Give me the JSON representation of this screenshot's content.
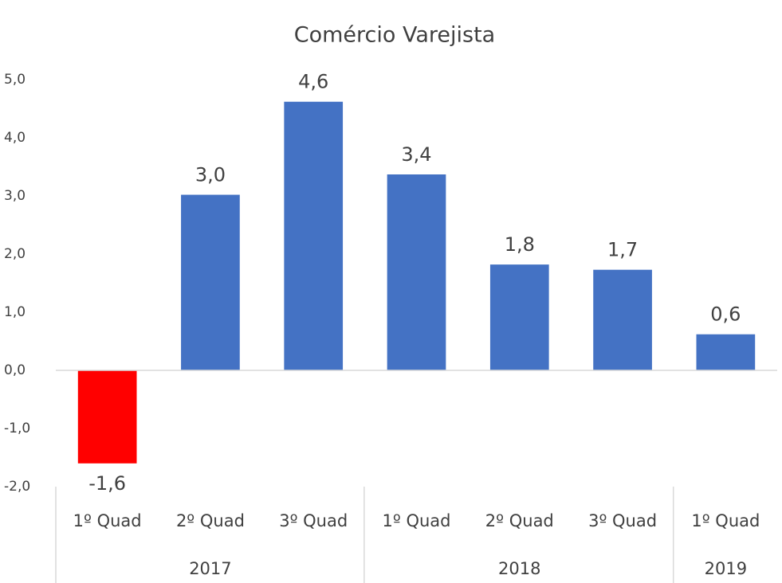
{
  "chart_data": {
    "type": "bar",
    "title": "Comércio Varejista",
    "categories": [
      "1º Quad",
      "2º Quad",
      "3º Quad",
      "1º Quad",
      "2º Quad",
      "3º Quad",
      "1º Quad"
    ],
    "groups": [
      {
        "name": "2017",
        "span": 3
      },
      {
        "name": "2018",
        "span": 3
      },
      {
        "name": "2019",
        "span": 1
      }
    ],
    "values": [
      -1.6,
      3.02,
      4.62,
      3.37,
      1.82,
      1.73,
      0.62
    ],
    "value_labels": [
      "-1,6",
      "3,0",
      "4,6",
      "3,4",
      "1,8",
      "1,7",
      "0,6"
    ],
    "colors": [
      "#ff0000",
      "#4472c4",
      "#4472c4",
      "#4472c4",
      "#4472c4",
      "#4472c4",
      "#4472c4"
    ],
    "ylim": [
      -2,
      5
    ],
    "yticks": [
      {
        "value": -2,
        "label": "-2,0"
      },
      {
        "value": -1,
        "label": "-1,0"
      },
      {
        "value": 0,
        "label": "0,0"
      },
      {
        "value": 1,
        "label": "1,0"
      },
      {
        "value": 2,
        "label": "2,0"
      },
      {
        "value": 3,
        "label": "3,0"
      },
      {
        "value": 4,
        "label": "4,0"
      },
      {
        "value": 5,
        "label": "5,0"
      }
    ],
    "grid": false
  }
}
